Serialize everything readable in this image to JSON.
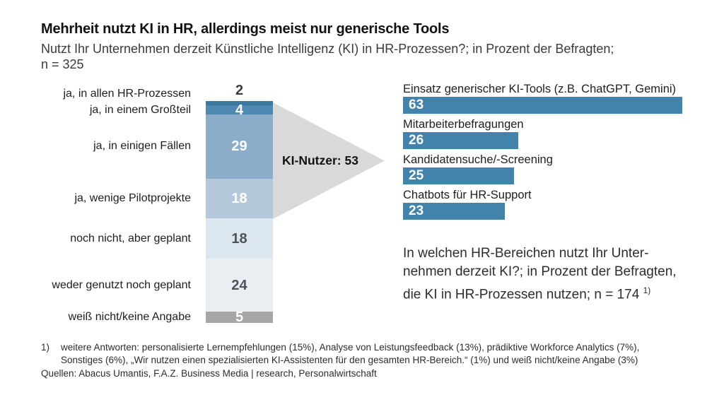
{
  "header": {
    "title": "Mehrheit nutzt KI in HR, allerdings meist nur generische Tools",
    "subtitle_line1": "Nutzt Ihr Unternehmen derzeit Künstliche Intelligenz (KI) in HR-Prozessen?; in Prozent der Befragten;",
    "subtitle_line2": "n = 325"
  },
  "chart_data": [
    {
      "type": "bar",
      "variant": "stacked-vertical-single-column",
      "title": "Nutzt Ihr Unternehmen derzeit Künstliche Intelligenz (KI) in HR-Prozessen?",
      "unit": "Prozent der Befragten",
      "n": 325,
      "categories": [
        "ja, in allen HR-Prozessen",
        "ja, in einem Großteil",
        "ja, in einigen Fällen",
        "ja, wenige Pilotprojekte",
        "noch nicht, aber geplant",
        "weder genutzt noch geplant",
        "weiß nicht/keine Angabe"
      ],
      "values": [
        2,
        4,
        29,
        18,
        18,
        24,
        5
      ],
      "colors": [
        "#3b79a1",
        "#4f88b0",
        "#8badca",
        "#b5c8db",
        "#dce6ef",
        "#e9eef3",
        "#a6a6a6"
      ],
      "value_text_colors": [
        "#3d3d3d",
        "#ffffff",
        "#ffffff",
        "#ffffff",
        "#4d5257",
        "#4d5257",
        "#ffffff"
      ],
      "annotation": "KI-Nutzer: 53",
      "annotation_arrow_color": "#d9d9d9",
      "total": 100,
      "legend": "none",
      "grid": "off"
    },
    {
      "type": "bar",
      "variant": "horizontal",
      "unit": "Prozent der Befragten, die KI in HR-Prozessen nutzen",
      "n": 174,
      "categories": [
        "Einsatz generischer KI-Tools (z.B. ChatGPT, Gemini)",
        "Mitarbeiterbefragungen",
        "Kandidatensuche/-Screening",
        "Chatbots für HR-Support"
      ],
      "values": [
        63,
        26,
        25,
        23
      ],
      "bar_color": "#4283ab",
      "value_text_color": "#ffffff",
      "xlim": [
        0,
        63
      ],
      "legend": "none",
      "grid": "off"
    }
  ],
  "right_caption": {
    "line1": "In welchen HR-Bereichen nutzt Ihr Unter-",
    "line2": "nehmen derzeit KI?; in Prozent der Befragten,",
    "line3": "die KI in HR-Prozessen nutzen; n = 174",
    "line3_sup": "1)"
  },
  "footnote": {
    "marker": "1)",
    "line1": "weitere Antworten: personalisierte Lernempfehlungen (15%), Analyse von Leistungsfeedback (13%), prädiktive Workforce Analytics (7%),",
    "line2": "Sonstiges (6%), „Wir nutzen einen spezialisierten KI-Assistenten für den gesamten HR-Bereich.“ (1%) und weiß nicht/keine Angabe (3%)"
  },
  "sources": "Quellen: Abacus Umantis, F.A.Z. Business Media | research, Personalwirtschaft"
}
